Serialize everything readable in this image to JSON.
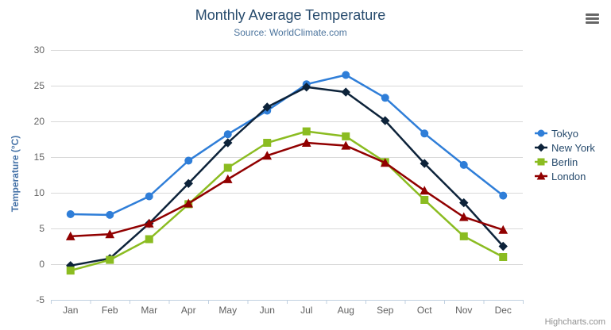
{
  "chart_data": {
    "type": "line",
    "title": "Monthly Average Temperature",
    "subtitle": "Source: WorldClimate.com",
    "xlabel": "",
    "ylabel": "Temperature (°C)",
    "categories": [
      "Jan",
      "Feb",
      "Mar",
      "Apr",
      "May",
      "Jun",
      "Jul",
      "Aug",
      "Sep",
      "Oct",
      "Nov",
      "Dec"
    ],
    "ylim": [
      -5,
      30
    ],
    "ytick_step": 5,
    "grid": true,
    "legend_position": "right",
    "series": [
      {
        "name": "Tokyo",
        "color": "#2f7ed8",
        "marker": "circle",
        "values": [
          7.0,
          6.9,
          9.5,
          14.5,
          18.2,
          21.5,
          25.2,
          26.5,
          23.3,
          18.3,
          13.9,
          9.6
        ]
      },
      {
        "name": "New York",
        "color": "#0d233a",
        "marker": "diamond",
        "values": [
          -0.2,
          0.8,
          5.7,
          11.3,
          17.0,
          22.0,
          24.8,
          24.1,
          20.1,
          14.1,
          8.6,
          2.5
        ]
      },
      {
        "name": "Berlin",
        "color": "#8bbc21",
        "marker": "square",
        "values": [
          -0.9,
          0.6,
          3.5,
          8.4,
          13.5,
          17.0,
          18.6,
          17.9,
          14.3,
          9.0,
          3.9,
          1.0
        ]
      },
      {
        "name": "London",
        "color": "#910000",
        "marker": "triangle",
        "values": [
          3.9,
          4.2,
          5.7,
          8.5,
          11.9,
          15.2,
          17.0,
          16.6,
          14.2,
          10.3,
          6.6,
          4.8
        ]
      }
    ]
  },
  "credits": "Highcharts.com",
  "icons": {
    "context_menu": "hamburger-icon"
  },
  "colors": {
    "title": "#274b6d",
    "subtitle": "#4d759e",
    "axis_title": "#4572a7",
    "tick_label": "#606060",
    "grid_line": "#d8d8d8",
    "axis_line": "#c0d0e0",
    "legend_text": "#274b6d",
    "credits_text": "#909090",
    "hamburger": "#666666",
    "background": "#ffffff"
  }
}
